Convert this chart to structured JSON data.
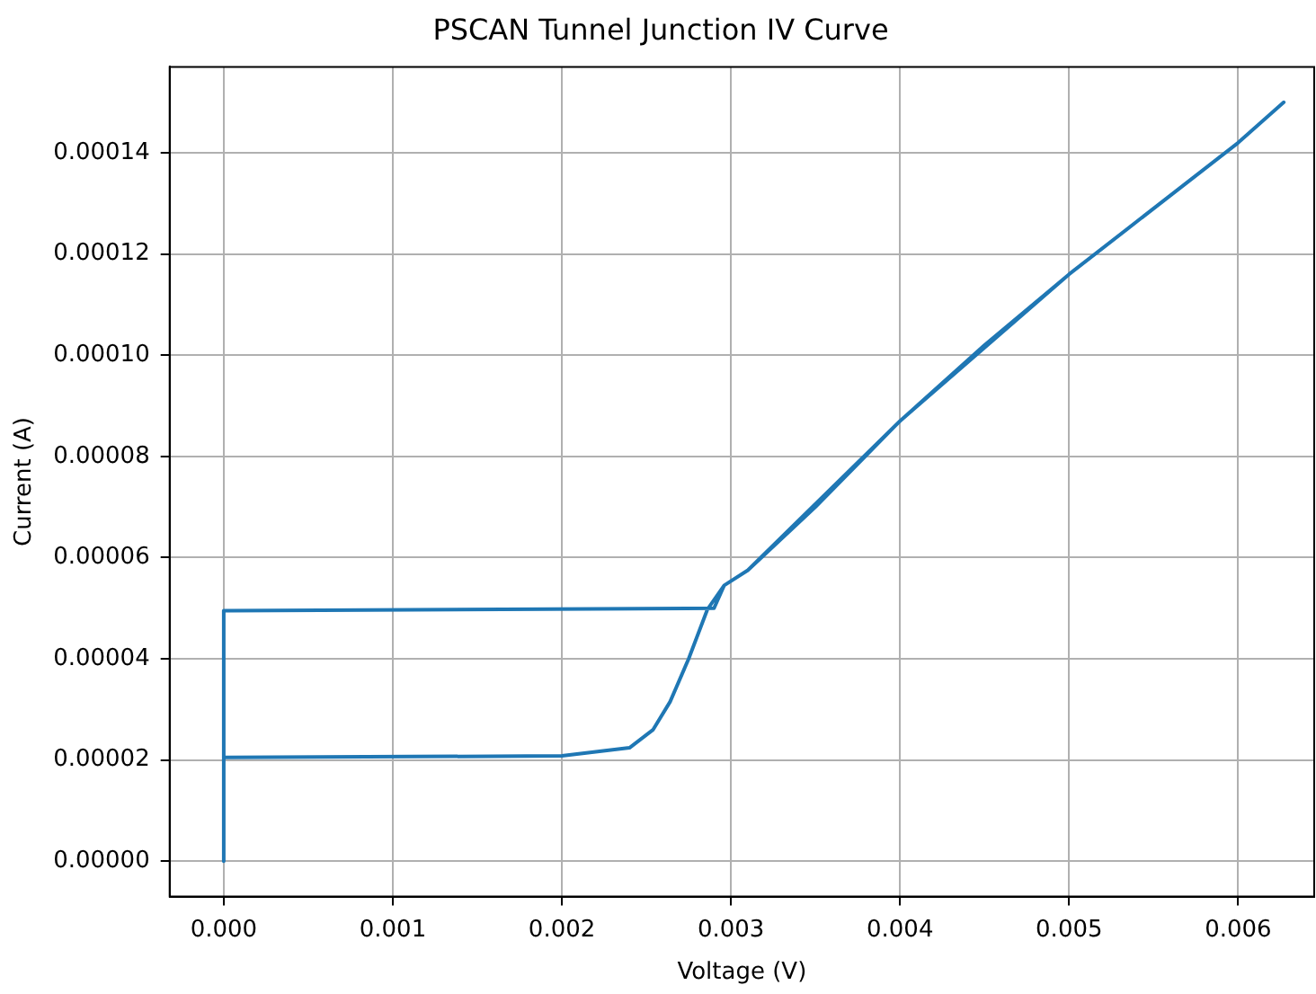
{
  "chart_data": {
    "type": "line",
    "title": "PSCAN Tunnel Junction IV Curve",
    "xlabel": "Voltage (V)",
    "ylabel": "Current (A)",
    "x": [
      0,
      0,
      0.002,
      0.0024,
      0.00254,
      0.00264,
      0.00275,
      0.00286,
      0.00296,
      0.0031,
      0.0035,
      0.004,
      0.0045,
      0.005,
      0.0055,
      0.006,
      0.00627,
      0.006,
      0.005,
      0.004,
      0.0031,
      0.00296,
      0.0029,
      0,
      0
    ],
    "series": [
      {
        "color": "#1f77b4",
        "values": [
          0,
          2.05e-05,
          2.08e-05,
          2.24e-05,
          2.6e-05,
          3.15e-05,
          4e-05,
          4.97e-05,
          5.45e-05,
          5.75e-05,
          7e-05,
          8.7e-05,
          0.000102,
          0.000116,
          0.000129,
          0.000142,
          0.00015,
          0.000142,
          0.000116,
          8.7e-05,
          5.75e-05,
          5.45e-05,
          5e-05,
          4.95e-05,
          2.05e-05
        ]
      }
    ],
    "xlim": [
      -0.00032,
      0.00645
    ],
    "ylim": [
      -7e-06,
      0.000157
    ],
    "xticks": [
      {
        "value": 0,
        "label": "0.000"
      },
      {
        "value": 0.001,
        "label": "0.001"
      },
      {
        "value": 0.002,
        "label": "0.002"
      },
      {
        "value": 0.003,
        "label": "0.003"
      },
      {
        "value": 0.004,
        "label": "0.004"
      },
      {
        "value": 0.005,
        "label": "0.005"
      },
      {
        "value": 0.006,
        "label": "0.006"
      }
    ],
    "yticks": [
      {
        "value": 0,
        "label": "0.00000"
      },
      {
        "value": 2e-05,
        "label": "0.00002"
      },
      {
        "value": 4e-05,
        "label": "0.00004"
      },
      {
        "value": 6e-05,
        "label": "0.00006"
      },
      {
        "value": 8e-05,
        "label": "0.00008"
      },
      {
        "value": 0.0001,
        "label": "0.00010"
      },
      {
        "value": 0.00012,
        "label": "0.00012"
      },
      {
        "value": 0.00014,
        "label": "0.00014"
      }
    ],
    "grid": true,
    "marker": "none",
    "line_style": "solid"
  }
}
